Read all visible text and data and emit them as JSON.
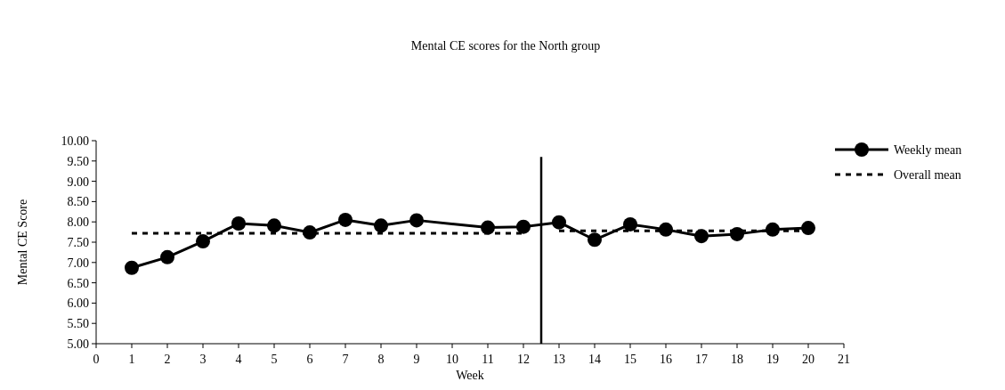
{
  "chart_data": {
    "type": "line",
    "title": "Mental CE scores for the North group",
    "xlabel": "Week",
    "ylabel": "Mental CE Score",
    "legend": "top right",
    "grid": false,
    "xlim": [
      0,
      21
    ],
    "xticks": [
      0,
      1,
      2,
      3,
      4,
      5,
      6,
      7,
      8,
      9,
      10,
      11,
      12,
      13,
      14,
      15,
      16,
      17,
      18,
      19,
      20,
      21
    ],
    "ylim": [
      5,
      10
    ],
    "yticks": [
      {
        "value": 5,
        "label": "5.00"
      },
      {
        "value": 5.5,
        "label": "5.50"
      },
      {
        "value": 6,
        "label": "6.00"
      },
      {
        "value": 6.5,
        "label": "6.50"
      },
      {
        "value": 7,
        "label": "7.00"
      },
      {
        "value": 7.5,
        "label": "7.50"
      },
      {
        "value": 8,
        "label": "8.00"
      },
      {
        "value": 8.5,
        "label": "8.50"
      },
      {
        "value": 9,
        "label": "9.00"
      },
      {
        "value": 9.5,
        "label": "9.50"
      },
      {
        "value": 10,
        "label": "10.00"
      }
    ],
    "series": [
      {
        "name": "Weekly mean",
        "color": "#000000",
        "marker": "circle",
        "line_style": "solid",
        "x": [
          1,
          2,
          3,
          4,
          5,
          6,
          7,
          8,
          9,
          11,
          12,
          13,
          14,
          15,
          16,
          17,
          18,
          19,
          20
        ],
        "values": [
          6.87,
          7.13,
          7.52,
          7.96,
          7.91,
          7.74,
          8.05,
          7.91,
          8.04,
          7.86,
          7.88,
          7.99,
          7.56,
          7.94,
          7.81,
          7.65,
          7.7,
          7.81,
          7.85
        ]
      },
      {
        "name": "Overall mean",
        "color": "#000000",
        "marker": "none",
        "line_style": "dashed",
        "x": [
          1,
          12,
          12.5,
          13,
          20
        ],
        "values": [
          7.72,
          7.72,
          null,
          7.78,
          7.78
        ]
      }
    ],
    "ref_lines": [
      {
        "axis": "x",
        "value": 12.5,
        "color": "#000000",
        "line_style": "solid"
      }
    ]
  }
}
